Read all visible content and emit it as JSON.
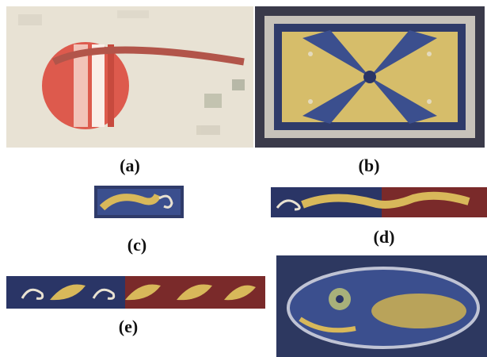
{
  "figure": {
    "captions": {
      "a": "(a)",
      "b": "(b)",
      "c": "(c)",
      "d": "(d)",
      "e": "(e)"
    }
  },
  "colors": {
    "parchment": "#e9e2d2",
    "red_ink": "#d9534a",
    "gold": "#d8b85a",
    "blue": "#3b4f8e",
    "dark_blue": "#2a3566",
    "maroon": "#7a2a2a",
    "frame_dark": "#3a3a4a"
  }
}
